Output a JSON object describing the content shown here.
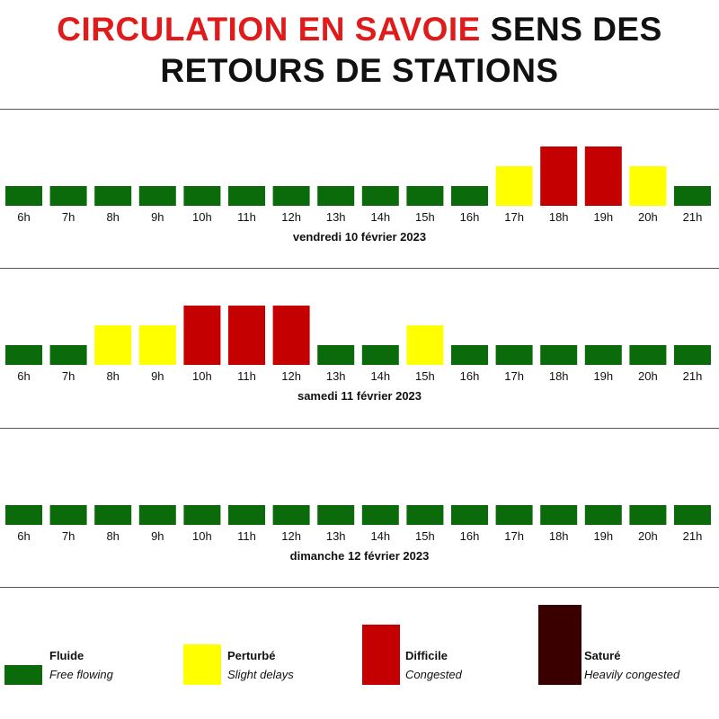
{
  "title": {
    "part1": "CIRCULATION EN SAVOIE",
    "part2": " SENS DES",
    "line2": "RETOURS DE STATIONS"
  },
  "colors": {
    "title_red": "#e01b1b",
    "fluide": "#0b6b0b",
    "perturbe": "#ffff00",
    "difficile": "#c40000",
    "sature": "#3a0000"
  },
  "chart_data": [
    {
      "type": "bar",
      "title": "vendredi 10 février 2023",
      "categories": [
        "6h",
        "7h",
        "8h",
        "9h",
        "10h",
        "11h",
        "12h",
        "13h",
        "14h",
        "15h",
        "16h",
        "17h",
        "18h",
        "19h",
        "20h",
        "21h"
      ],
      "values": [
        1,
        1,
        1,
        1,
        1,
        1,
        1,
        1,
        1,
        1,
        1,
        2,
        3,
        3,
        2,
        1
      ],
      "status": [
        "fluide",
        "fluide",
        "fluide",
        "fluide",
        "fluide",
        "fluide",
        "fluide",
        "fluide",
        "fluide",
        "fluide",
        "fluide",
        "perturbe",
        "difficile",
        "difficile",
        "perturbe",
        "fluide"
      ],
      "ylim": [
        0,
        3
      ],
      "grid": false
    },
    {
      "type": "bar",
      "title": "samedi 11 février 2023",
      "categories": [
        "6h",
        "7h",
        "8h",
        "9h",
        "10h",
        "11h",
        "12h",
        "13h",
        "14h",
        "15h",
        "16h",
        "17h",
        "18h",
        "19h",
        "20h",
        "21h"
      ],
      "values": [
        1,
        1,
        2,
        2,
        3,
        3,
        3,
        1,
        1,
        2,
        1,
        1,
        1,
        1,
        1,
        1
      ],
      "status": [
        "fluide",
        "fluide",
        "perturbe",
        "perturbe",
        "difficile",
        "difficile",
        "difficile",
        "fluide",
        "fluide",
        "perturbe",
        "fluide",
        "fluide",
        "fluide",
        "fluide",
        "fluide",
        "fluide"
      ],
      "ylim": [
        0,
        3
      ],
      "grid": false
    },
    {
      "type": "bar",
      "title": "dimanche 12 février 2023",
      "categories": [
        "6h",
        "7h",
        "8h",
        "9h",
        "10h",
        "11h",
        "12h",
        "13h",
        "14h",
        "15h",
        "16h",
        "17h",
        "18h",
        "19h",
        "20h",
        "21h"
      ],
      "values": [
        1,
        1,
        1,
        1,
        1,
        1,
        1,
        1,
        1,
        1,
        1,
        1,
        1,
        1,
        1,
        1
      ],
      "status": [
        "fluide",
        "fluide",
        "fluide",
        "fluide",
        "fluide",
        "fluide",
        "fluide",
        "fluide",
        "fluide",
        "fluide",
        "fluide",
        "fluide",
        "fluide",
        "fluide",
        "fluide",
        "fluide"
      ],
      "ylim": [
        0,
        3
      ],
      "grid": false
    }
  ],
  "legend": [
    {
      "key": "fluide",
      "label": "Fluide",
      "desc": "Free flowing",
      "level": 1
    },
    {
      "key": "perturbe",
      "label": "Perturbé",
      "desc": "Slight delays",
      "level": 2
    },
    {
      "key": "difficile",
      "label": "Difficile",
      "desc": "Congested",
      "level": 3
    },
    {
      "key": "sature",
      "label": "Saturé",
      "desc": "Heavily congested",
      "level": 4
    }
  ]
}
